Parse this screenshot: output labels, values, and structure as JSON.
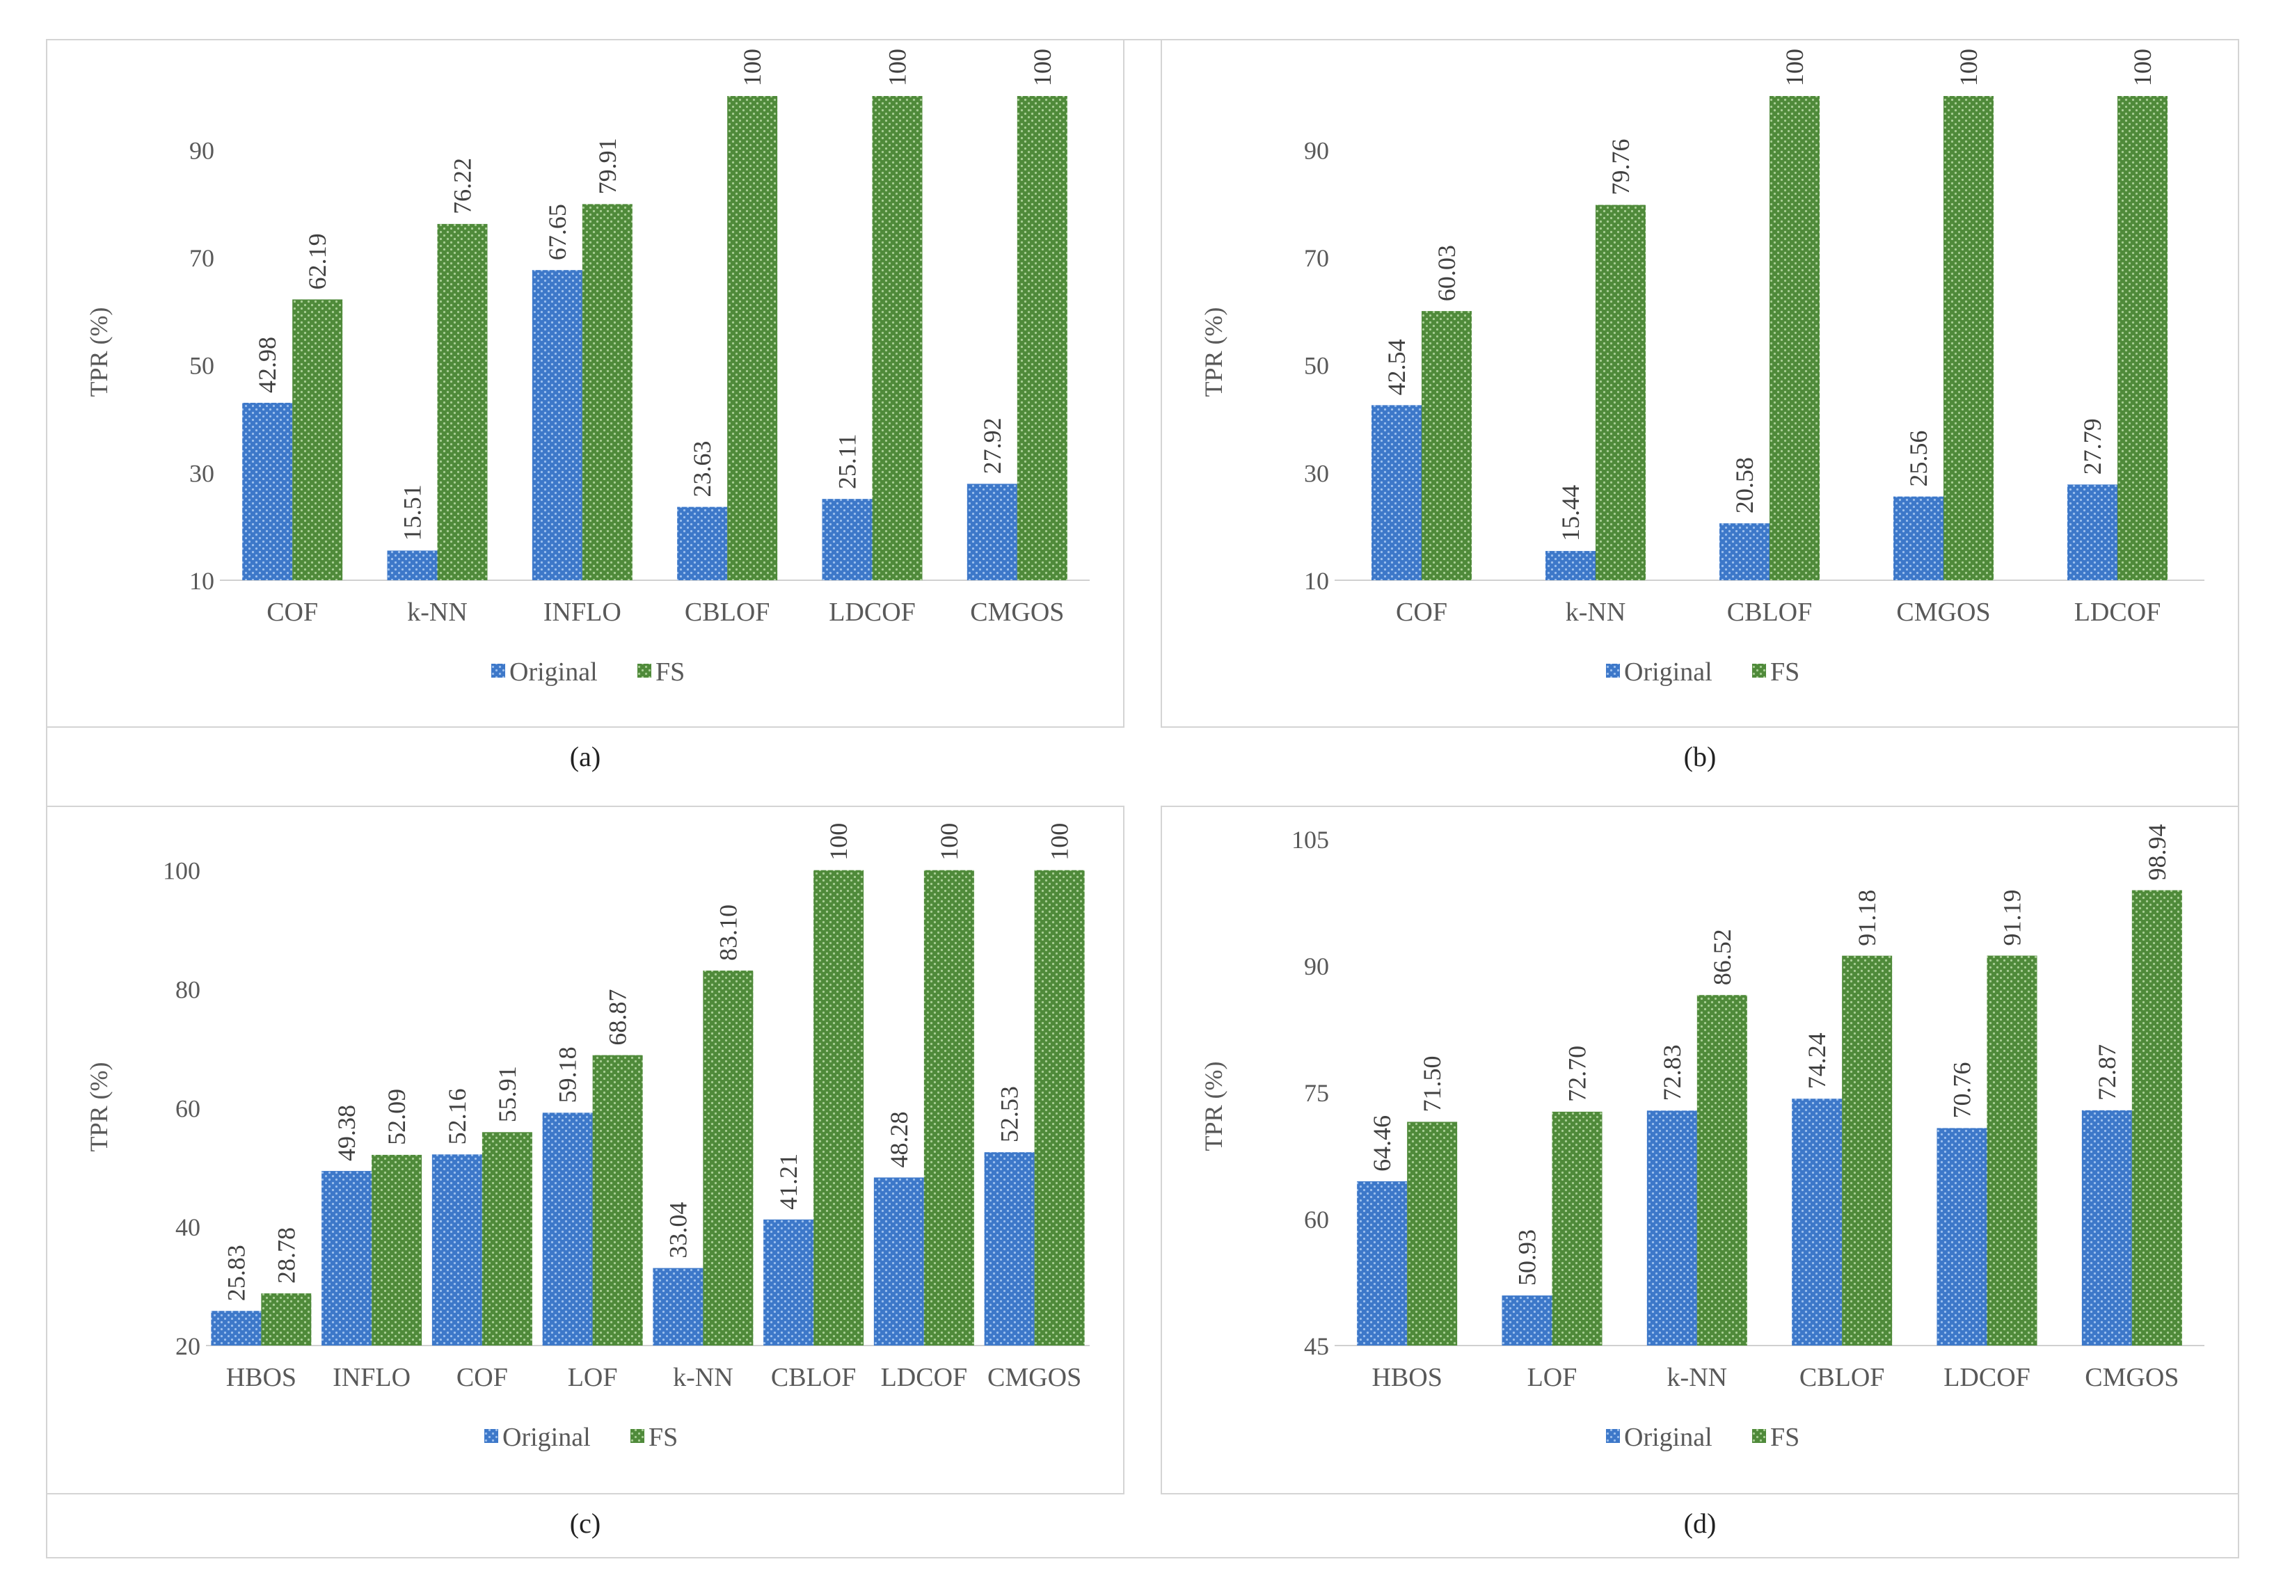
{
  "colors": {
    "original": "#3d78c9",
    "fs": "#4f8a3a",
    "axis_text": "#595959",
    "label_text": "#404040",
    "axis_line": "#d0d0d0"
  },
  "chart_data": [
    {
      "type": "bar",
      "caption": "(a)",
      "ylabel": "TPR (%)",
      "ylim": [
        10,
        100
      ],
      "yticks": [
        "10",
        "30",
        "50",
        "70",
        "90"
      ],
      "categories": [
        "COF",
        "k-NN",
        "INFLO",
        "CBLOF",
        "LDCOF",
        "CMGOS"
      ],
      "series": [
        {
          "name": "Original",
          "values": [
            42.98,
            15.51,
            67.65,
            23.63,
            25.11,
            27.92
          ],
          "labels": [
            "42.98",
            "15.51",
            "67.65",
            "23.63",
            "25.11",
            "27.92"
          ]
        },
        {
          "name": "FS",
          "values": [
            62.19,
            76.22,
            79.91,
            100,
            100,
            100
          ],
          "labels": [
            "62.19",
            "76.22",
            "79.91",
            "100",
            "100",
            "100"
          ]
        }
      ],
      "legend": "bottom"
    },
    {
      "type": "bar",
      "caption": "(b)",
      "ylabel": "TPR (%)",
      "ylim": [
        10,
        100
      ],
      "yticks": [
        "10",
        "30",
        "50",
        "70",
        "90"
      ],
      "categories": [
        "COF",
        "k-NN",
        "CBLOF",
        "CMGOS",
        "LDCOF"
      ],
      "series": [
        {
          "name": "Original",
          "values": [
            42.54,
            15.44,
            20.58,
            25.56,
            27.79
          ],
          "labels": [
            "42.54",
            "15.44",
            "20.58",
            "25.56",
            "27.79"
          ]
        },
        {
          "name": "FS",
          "values": [
            60.03,
            79.76,
            100,
            100,
            100
          ],
          "labels": [
            "60.03",
            "79.76",
            "100",
            "100",
            "100"
          ]
        }
      ],
      "legend": "bottom"
    },
    {
      "type": "bar",
      "caption": "(c)",
      "ylabel": "TPR (%)",
      "ylim": [
        20,
        105
      ],
      "yticks": [
        "20",
        "40",
        "60",
        "80",
        "100"
      ],
      "categories": [
        "HBOS",
        "INFLO",
        "COF",
        "LOF",
        "k-NN",
        "CBLOF",
        "LDCOF",
        "CMGOS"
      ],
      "series": [
        {
          "name": "Original",
          "values": [
            25.83,
            49.38,
            52.16,
            59.18,
            33.04,
            41.21,
            48.28,
            52.53
          ],
          "labels": [
            "25.83",
            "49.38",
            "52.16",
            "59.18",
            "33.04",
            "41.21",
            "48.28",
            "52.53"
          ]
        },
        {
          "name": "FS",
          "values": [
            28.78,
            52.09,
            55.91,
            68.87,
            83.1,
            100,
            100,
            100
          ],
          "labels": [
            "28.78",
            "52.09",
            "55.91",
            "68.87",
            "83.10",
            "100",
            "100",
            "100"
          ]
        }
      ],
      "legend": "bottom"
    },
    {
      "type": "bar",
      "caption": "(d)",
      "ylabel": "TPR (%)",
      "ylim": [
        45,
        105
      ],
      "yticks": [
        "45",
        "60",
        "75",
        "90",
        "105"
      ],
      "categories": [
        "HBOS",
        "LOF",
        "k-NN",
        "CBLOF",
        "LDCOF",
        "CMGOS"
      ],
      "series": [
        {
          "name": "Original",
          "values": [
            64.46,
            50.93,
            72.83,
            74.24,
            70.76,
            72.87
          ],
          "labels": [
            "64.46",
            "50.93",
            "72.83",
            "74.24",
            "70.76",
            "72.87"
          ]
        },
        {
          "name": "FS",
          "values": [
            71.5,
            72.7,
            86.52,
            91.18,
            91.19,
            98.94
          ],
          "labels": [
            "71.50",
            "72.70",
            "86.52",
            "91.18",
            "91.19",
            "98.94"
          ]
        }
      ],
      "legend": "bottom"
    }
  ]
}
